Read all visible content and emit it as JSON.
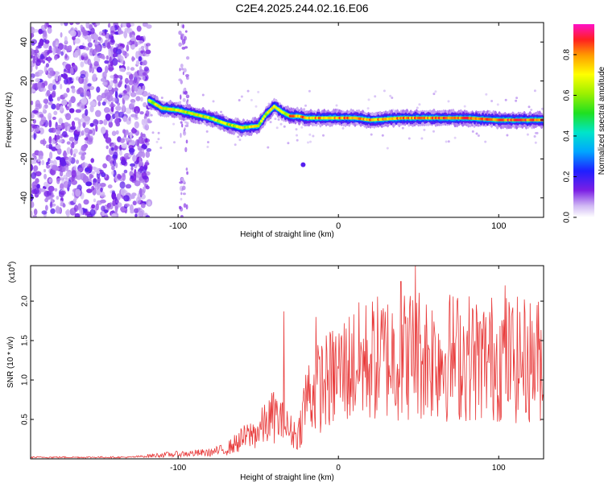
{
  "title": "C2E4.2025.244.02.16.E06",
  "chart_data": [
    {
      "type": "heatmap",
      "name": "spectrogram",
      "xlabel": "Height of straight line (km)",
      "ylabel": "Frequency (Hz)",
      "xlim": [
        -192,
        128
      ],
      "ylim": [
        -50,
        50
      ],
      "xticks": [
        -100,
        0,
        100
      ],
      "yticks": [
        -40,
        -20,
        0,
        20,
        40
      ],
      "colorbar": {
        "label": "Normalized spectral amplitude",
        "range": [
          0.0,
          0.95
        ],
        "ticks": [
          "0.0",
          "0.2",
          "0.4",
          "0.6",
          "0.8"
        ]
      },
      "ridge": {
        "x": [
          -118,
          -110,
          -100,
          -90,
          -80,
          -70,
          -60,
          -50,
          -45,
          -40,
          -35,
          -30,
          -25,
          -20,
          -10,
          0,
          10,
          20,
          40,
          60,
          80,
          100,
          128
        ],
        "frequency": [
          10,
          6,
          5,
          3,
          1,
          -2,
          -4,
          -3,
          3,
          7,
          4,
          2,
          2,
          1,
          1,
          1,
          1,
          0,
          1,
          1,
          1,
          0,
          0
        ],
        "amplitude_peak": 0.95
      },
      "isolated_blob": {
        "x": -22,
        "frequency": -23
      }
    },
    {
      "type": "line",
      "name": "snr",
      "xlabel": "Height of straight line (km)",
      "ylabel": "SNR (10 * v/v)",
      "y_scale_label": "(x10",
      "y_scale_exp": "4",
      "xlim": [
        -192,
        128
      ],
      "ylim": [
        0,
        2.45
      ],
      "xticks": [
        -100,
        0,
        100
      ],
      "yticks": [
        "0.5",
        "1.0",
        "1.5",
        "2.0"
      ],
      "color": "#e83a3a",
      "envelope": {
        "x": [
          -192,
          -130,
          -110,
          -100,
          -80,
          -70,
          -60,
          -50,
          -40,
          -35,
          -30,
          -25,
          -20,
          -15,
          -10,
          -5,
          0,
          10,
          20,
          30,
          40,
          50,
          60,
          70,
          80,
          90,
          100,
          110,
          128
        ],
        "y": [
          0.02,
          0.02,
          0.05,
          0.06,
          0.08,
          0.12,
          0.25,
          0.35,
          0.55,
          0.45,
          0.35,
          0.3,
          0.8,
          0.85,
          0.95,
          1.0,
          1.1,
          1.2,
          1.25,
          1.3,
          1.3,
          1.35,
          1.3,
          1.3,
          1.3,
          1.25,
          1.3,
          1.25,
          1.25
        ]
      },
      "spikes": [
        {
          "x": -34,
          "y": 1.87
        },
        {
          "x": -14,
          "y": 1.8
        },
        {
          "x": 39,
          "y": 2.25
        },
        {
          "x": 48,
          "y": 2.45
        },
        {
          "x": 104,
          "y": 2.2
        },
        {
          "x": 124,
          "y": 1.95
        }
      ]
    }
  ]
}
